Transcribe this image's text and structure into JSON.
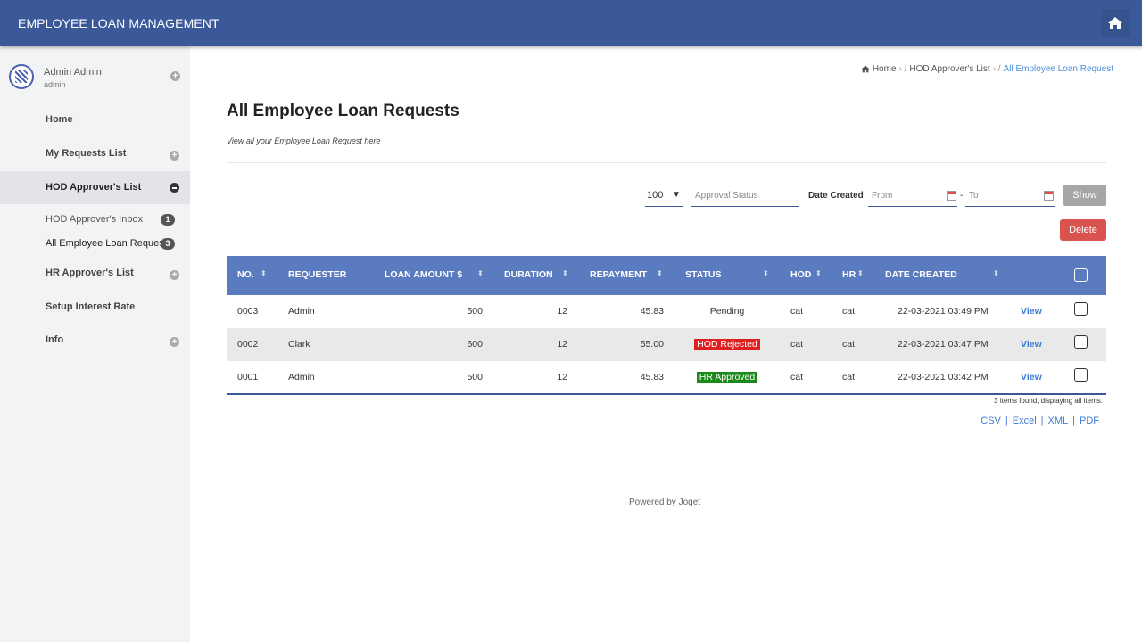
{
  "header": {
    "app_title": "EMPLOYEE LOAN MANAGEMENT",
    "home_icon": "home-icon"
  },
  "sidebar": {
    "user_name": "Admin Admin",
    "user_role": "admin",
    "items": [
      {
        "label": "Home"
      },
      {
        "label": "My Requests List"
      },
      {
        "label": "HOD Approver's List"
      },
      {
        "label": "HOD Approver's Inbox",
        "badge": "1"
      },
      {
        "label": "All Employee Loan Request",
        "badge": "3"
      },
      {
        "label": "HR Approver's List"
      },
      {
        "label": "Setup Interest Rate"
      },
      {
        "label": "Info"
      }
    ]
  },
  "breadcrumb": {
    "home": "Home",
    "level2": "HOD Approver's List",
    "current": "All Employee Loan Request"
  },
  "page": {
    "title": "All Employee Loan Requests",
    "subtitle": "View all your Employee Loan Request here"
  },
  "filters": {
    "page_size": "100",
    "approval_status_placeholder": "Approval Status",
    "date_created_label": "Date Created",
    "from_placeholder": "From",
    "to_placeholder": "To",
    "show_label": "Show",
    "delete_label": "Delete"
  },
  "table": {
    "columns": [
      "NO.",
      "REQUESTER",
      "LOAN AMOUNT $",
      "DURATION",
      "REPAYMENT",
      "STATUS",
      "HOD",
      "HR",
      "DATE CREATED"
    ],
    "rows": [
      {
        "no": "0003",
        "requester": "Admin",
        "amount": "500",
        "duration": "12",
        "repayment": "45.83",
        "status": "Pending",
        "hod": "cat",
        "hr": "cat",
        "date": "22-03-2021 03:49 PM",
        "view": "View"
      },
      {
        "no": "0002",
        "requester": "Clark",
        "amount": "600",
        "duration": "12",
        "repayment": "55.00",
        "status": "HOD Rejected",
        "hod": "cat",
        "hr": "cat",
        "date": "22-03-2021 03:47 PM",
        "view": "View"
      },
      {
        "no": "0001",
        "requester": "Admin",
        "amount": "500",
        "duration": "12",
        "repayment": "45.83",
        "status": "HR Approved",
        "hod": "cat",
        "hr": "cat",
        "date": "22-03-2021 03:42 PM",
        "view": "View"
      }
    ],
    "found_text": "3 items found, displaying all items.",
    "exports": [
      "CSV",
      "Excel",
      "XML",
      "PDF"
    ]
  },
  "footer": {
    "powered": "Powered by Joget"
  },
  "colors": {
    "header_bg": "#3b5998",
    "table_head": "#5b7bc0",
    "delete": "#d9534f",
    "rejected": "#e02020",
    "approved": "#1b8a1b"
  }
}
